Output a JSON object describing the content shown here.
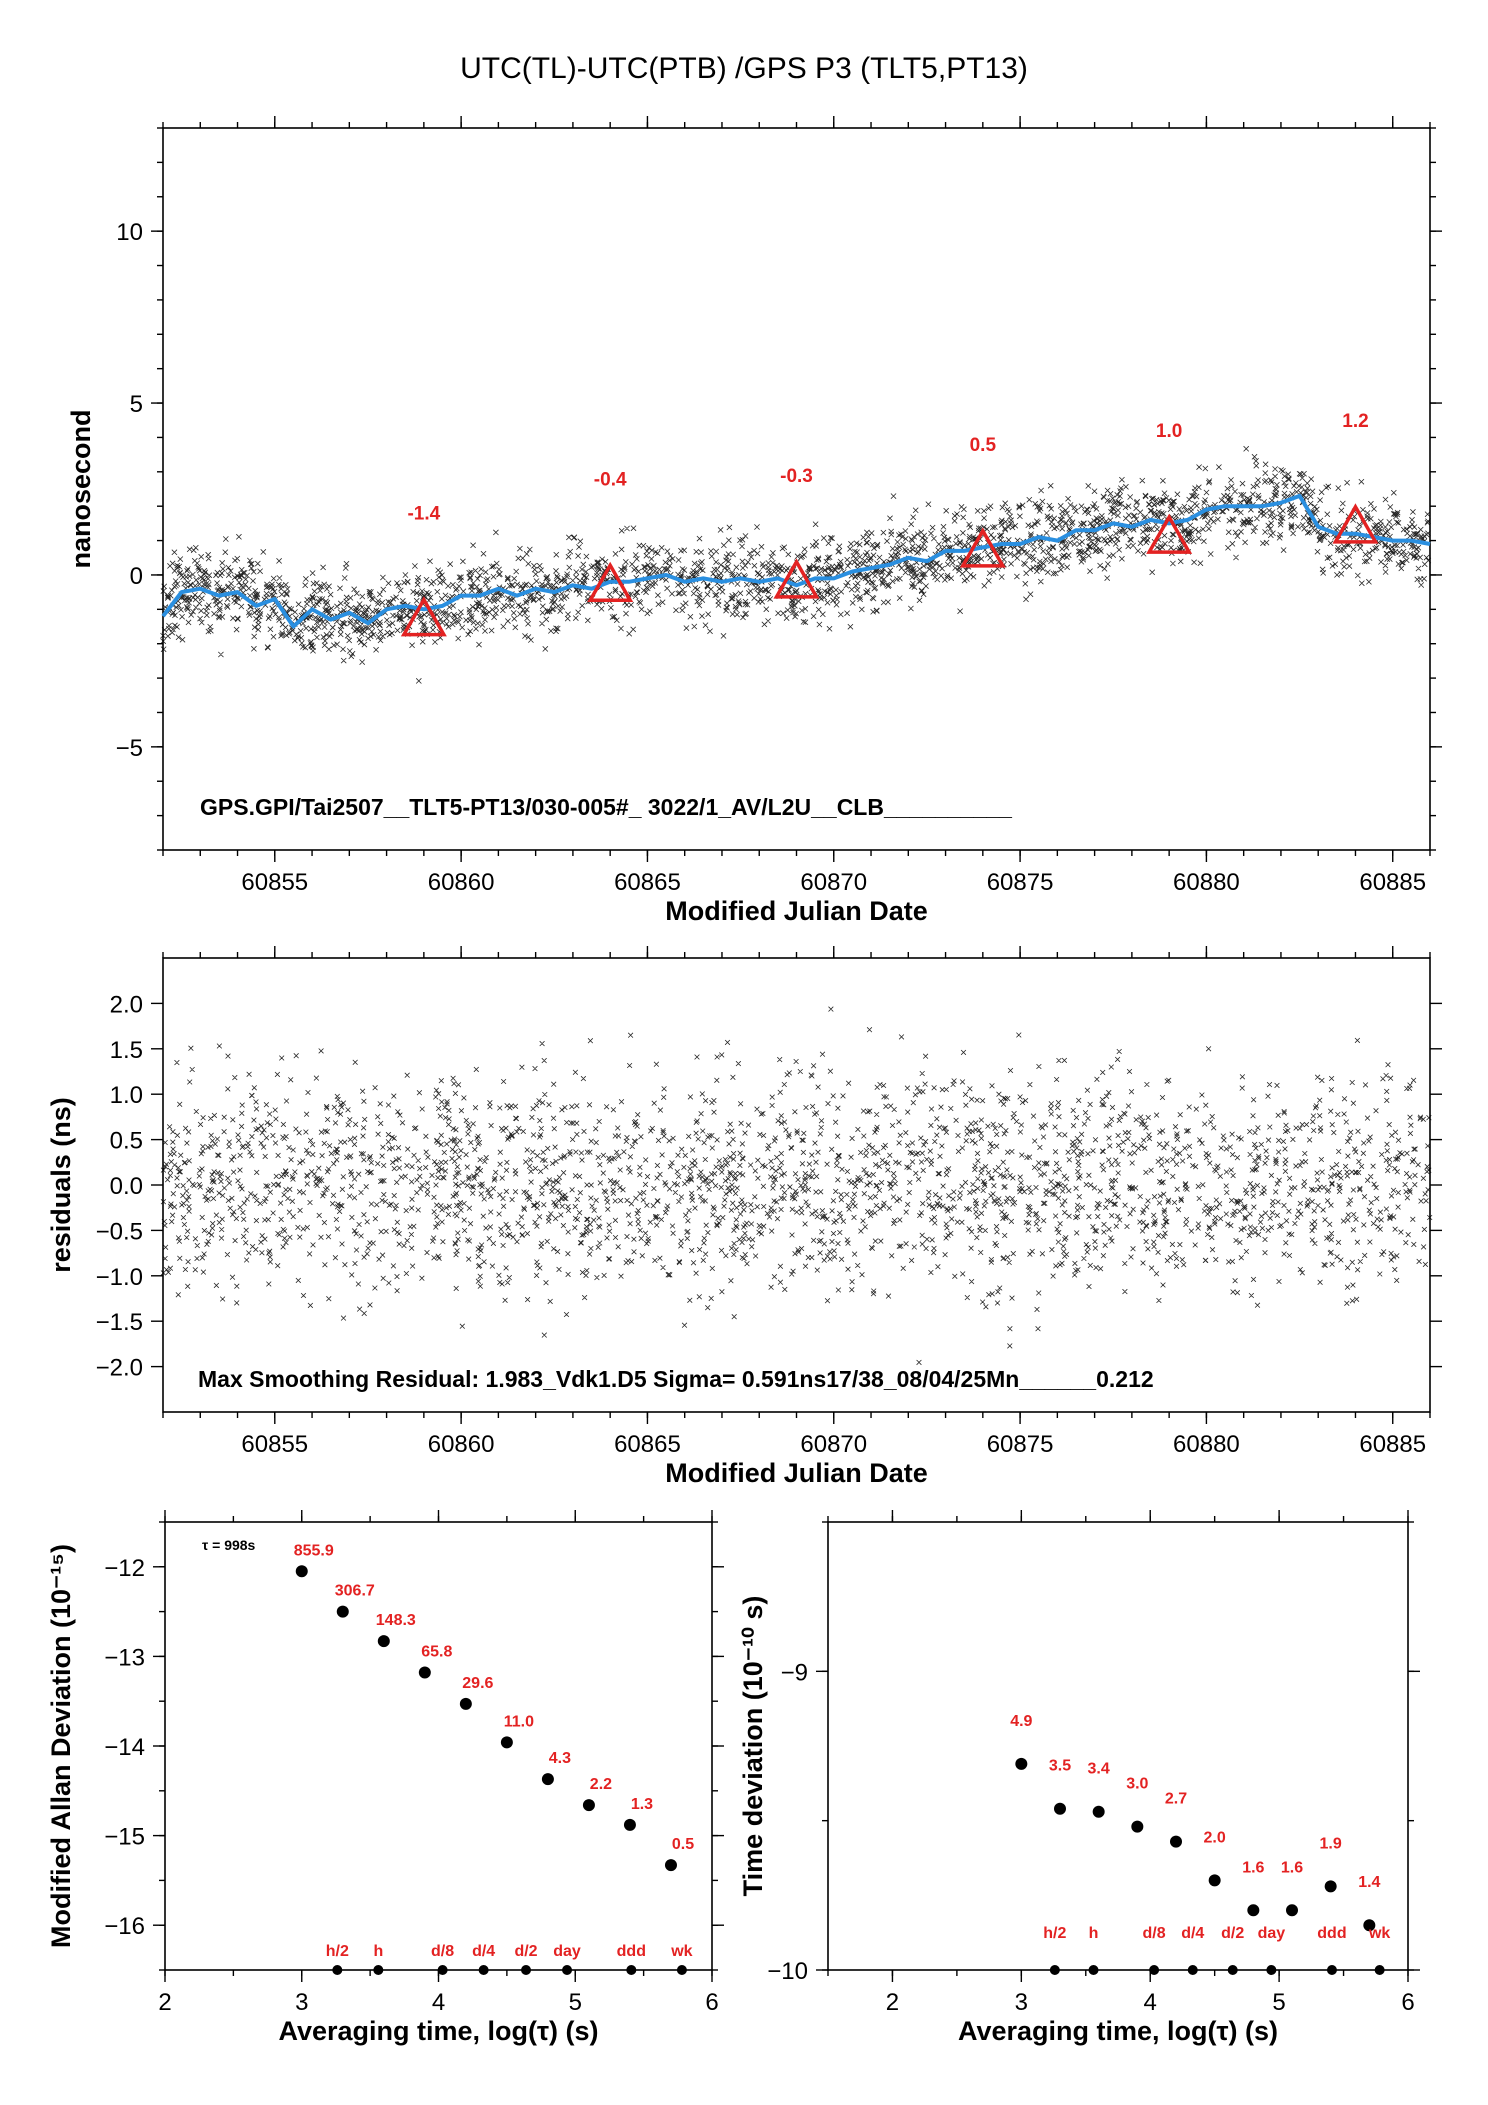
{
  "colors": {
    "smooth_line": "#2a8fe0",
    "marker_red": "#e32222",
    "scatter": "#000000"
  },
  "chart_data": [
    {
      "id": "top",
      "type": "scatter",
      "title": "UTC(TL)-UTC(PTB)  /GPS  P3  (TLT5,PT13)",
      "xlabel": "Modified Julian Date",
      "ylabel": "nanosecond",
      "xlim": [
        60852,
        60886
      ],
      "ylim": [
        -8,
        13
      ],
      "xticks": [
        60855,
        60860,
        60865,
        60870,
        60875,
        60880,
        60885
      ],
      "xticklabels": [
        "60855",
        "60860",
        "60865",
        "60870",
        "60875",
        "60880",
        "60885"
      ],
      "yticks": [
        -5,
        0,
        5,
        10
      ],
      "yticklabels": [
        "−5",
        "0",
        "5",
        "10"
      ],
      "annotation": "GPS.GPI/Tai2507__TLT5-PT13/030-005#_  3022/1_AV/L2U__CLB__________",
      "smooth_line": {
        "x": [
          60852,
          60852.5,
          60853,
          60853.5,
          60854,
          60854.5,
          60855,
          60855.5,
          60856,
          60856.5,
          60857,
          60857.5,
          60858,
          60858.5,
          60859,
          60859.5,
          60860,
          60860.5,
          60861,
          60861.5,
          60862,
          60862.5,
          60863,
          60863.5,
          60864,
          60864.5,
          60865,
          60865.5,
          60866,
          60866.5,
          60867,
          60867.5,
          60868,
          60868.5,
          60869,
          60869.5,
          60870,
          60870.5,
          60871,
          60871.5,
          60872,
          60872.5,
          60873,
          60873.5,
          60874,
          60874.5,
          60875,
          60875.5,
          60876,
          60876.5,
          60877,
          60877.5,
          60878,
          60878.5,
          60879,
          60879.5,
          60880,
          60880.5,
          60881,
          60881.5,
          60882,
          60882.5,
          60883,
          60883.5,
          60884,
          60884.5,
          60885,
          60885.5,
          60886
        ],
        "y": [
          -1.2,
          -0.5,
          -0.4,
          -0.6,
          -0.5,
          -0.9,
          -0.7,
          -1.5,
          -1.0,
          -1.3,
          -1.1,
          -1.4,
          -1.0,
          -0.9,
          -1.0,
          -0.9,
          -0.6,
          -0.6,
          -0.4,
          -0.6,
          -0.4,
          -0.5,
          -0.3,
          -0.4,
          -0.2,
          -0.2,
          -0.1,
          0.0,
          -0.2,
          -0.1,
          -0.2,
          -0.1,
          -0.2,
          -0.1,
          -0.3,
          -0.1,
          -0.1,
          0.1,
          0.2,
          0.3,
          0.5,
          0.4,
          0.7,
          0.7,
          0.8,
          0.9,
          0.9,
          1.1,
          1.0,
          1.3,
          1.3,
          1.5,
          1.4,
          1.6,
          1.5,
          1.6,
          1.9,
          2.0,
          2.0,
          2.0,
          2.1,
          2.3,
          1.4,
          1.2,
          1.2,
          1.1,
          1.0,
          1.0,
          0.9
        ]
      },
      "scatter_spread_ns": 0.59,
      "triangles": [
        {
          "x": 60859,
          "y": -1.3,
          "label": "-1.4"
        },
        {
          "x": 60864,
          "y": -0.3,
          "label": "-0.4"
        },
        {
          "x": 60869,
          "y": -0.2,
          "label": "-0.3"
        },
        {
          "x": 60874,
          "y": 0.7,
          "label": "0.5"
        },
        {
          "x": 60879,
          "y": 1.1,
          "label": "1.0"
        },
        {
          "x": 60884,
          "y": 1.4,
          "label": "1.2"
        }
      ]
    },
    {
      "id": "residuals",
      "type": "scatter",
      "xlabel": "Modified Julian Date",
      "ylabel": "residuals (ns)",
      "xlim": [
        60852,
        60886
      ],
      "ylim": [
        -2.5,
        2.5
      ],
      "xticks": [
        60855,
        60860,
        60865,
        60870,
        60875,
        60880,
        60885
      ],
      "xticklabels": [
        "60855",
        "60860",
        "60865",
        "60870",
        "60875",
        "60880",
        "60885"
      ],
      "yticks": [
        -2.0,
        -1.5,
        -1.0,
        -0.5,
        0.0,
        0.5,
        1.0,
        1.5,
        2.0
      ],
      "yticklabels": [
        "−2.0",
        "−1.5",
        "−1.0",
        "−0.5",
        "0.0",
        "0.5",
        "1.0",
        "1.5",
        "2.0"
      ],
      "annotation": "Max Smoothing Residual: 1.983_Vdk1.D5  Sigma= 0.591ns17/38_08/04/25Mn______0.212",
      "sigma_ns": 0.591,
      "max_residual_ns": 1.983
    },
    {
      "id": "mdev",
      "type": "scatter",
      "xlabel": "Averaging time, log(τ) (s)",
      "ylabel": "Modified Allan Deviation (10⁻¹⁵)",
      "xlim": [
        2,
        6
      ],
      "ylim": [
        -16.5,
        -11.5
      ],
      "xticks": [
        2,
        3,
        4,
        5,
        6
      ],
      "xticklabels": [
        "2",
        "3",
        "4",
        "5",
        "6"
      ],
      "yticks": [
        -16,
        -15,
        -14,
        -13,
        -12
      ],
      "yticklabels": [
        "−16",
        "−15",
        "−14",
        "−13",
        "−12"
      ],
      "tau_note": "τ = 998s",
      "points": [
        {
          "x": 3.0,
          "y": -12.05,
          "label": "855.9"
        },
        {
          "x": 3.3,
          "y": -12.5,
          "label": "306.7"
        },
        {
          "x": 3.6,
          "y": -12.83,
          "label": "148.3"
        },
        {
          "x": 3.9,
          "y": -13.18,
          "label": "65.8"
        },
        {
          "x": 4.2,
          "y": -13.53,
          "label": "29.6"
        },
        {
          "x": 4.5,
          "y": -13.96,
          "label": "11.0"
        },
        {
          "x": 4.8,
          "y": -14.37,
          "label": "4.3"
        },
        {
          "x": 5.1,
          "y": -14.66,
          "label": "2.2"
        },
        {
          "x": 5.4,
          "y": -14.88,
          "label": "1.3"
        },
        {
          "x": 5.7,
          "y": -15.33,
          "label": "0.5"
        }
      ],
      "markers": [
        {
          "x": 3.26,
          "label": "h/2"
        },
        {
          "x": 3.56,
          "label": "h"
        },
        {
          "x": 4.03,
          "label": "d/8"
        },
        {
          "x": 4.33,
          "label": "d/4"
        },
        {
          "x": 4.64,
          "label": "d/2"
        },
        {
          "x": 4.94,
          "label": "day"
        },
        {
          "x": 5.41,
          "label": "ddd"
        },
        {
          "x": 5.78,
          "label": "wk"
        }
      ]
    },
    {
      "id": "tdev",
      "type": "scatter",
      "xlabel": "Averaging time, log(τ) (s)",
      "ylabel": "Time deviation (10⁻¹⁰ s)",
      "xlim": [
        1.5,
        6
      ],
      "ylim": [
        -10,
        -8.5
      ],
      "xticks": [
        2,
        3,
        4,
        5,
        6
      ],
      "xticklabels": [
        "2",
        "3",
        "4",
        "5",
        "6"
      ],
      "yticks": [
        -10,
        -9
      ],
      "yticklabels": [
        "−10",
        "−9"
      ],
      "points": [
        {
          "x": 3.0,
          "y": -9.31,
          "label": "4.9"
        },
        {
          "x": 3.3,
          "y": -9.46,
          "label": "3.5"
        },
        {
          "x": 3.6,
          "y": -9.47,
          "label": "3.4"
        },
        {
          "x": 3.9,
          "y": -9.52,
          "label": "3.0"
        },
        {
          "x": 4.2,
          "y": -9.57,
          "label": "2.7"
        },
        {
          "x": 4.5,
          "y": -9.7,
          "label": "2.0"
        },
        {
          "x": 4.8,
          "y": -9.8,
          "label": "1.6"
        },
        {
          "x": 5.1,
          "y": -9.8,
          "label": "1.6"
        },
        {
          "x": 5.4,
          "y": -9.72,
          "label": "1.9"
        },
        {
          "x": 5.7,
          "y": -9.85,
          "label": "1.4"
        }
      ],
      "markers": [
        {
          "x": 3.26,
          "label": "h/2"
        },
        {
          "x": 3.56,
          "label": "h"
        },
        {
          "x": 4.03,
          "label": "d/8"
        },
        {
          "x": 4.33,
          "label": "d/4"
        },
        {
          "x": 4.64,
          "label": "d/2"
        },
        {
          "x": 4.94,
          "label": "day"
        },
        {
          "x": 5.41,
          "label": "ddd"
        },
        {
          "x": 5.78,
          "label": "wk"
        }
      ]
    }
  ]
}
